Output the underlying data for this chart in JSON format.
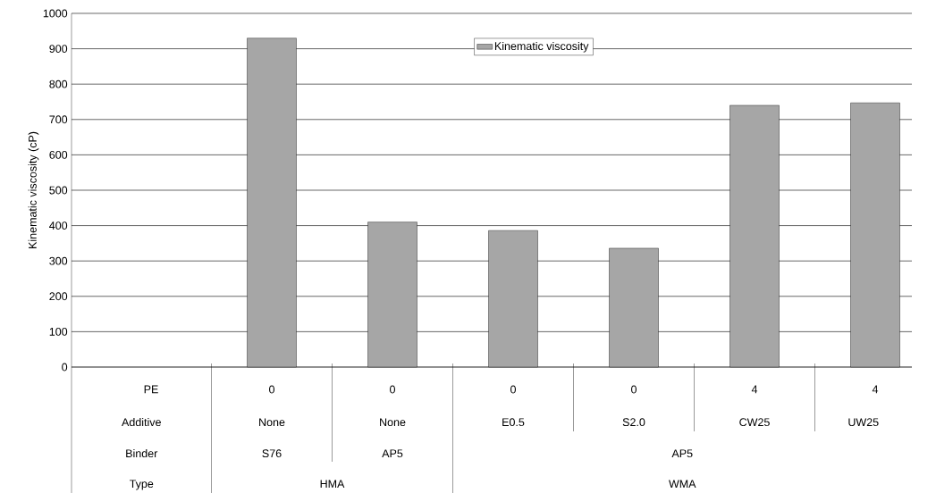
{
  "chart_data": {
    "type": "bar",
    "ylabel": "Kinematic viscosity (cP)",
    "categories": [
      "PE",
      "0",
      "0",
      "0",
      "0",
      "4",
      "4"
    ],
    "series": [
      {
        "name": "Kinematic viscosity",
        "color": "#a6a6a6",
        "values": [
          null,
          930,
          410,
          386,
          336,
          740,
          747
        ]
      }
    ],
    "ylim": [
      0,
      1000
    ],
    "yticks": [
      0,
      100,
      200,
      300,
      400,
      500,
      600,
      700,
      800,
      900,
      1000
    ],
    "grid": "y",
    "legend": "top",
    "annotations": [
      "Additive",
      "None",
      "None",
      "E0.5",
      "S2.0",
      "CW25",
      "UW25",
      "Binder",
      "S76",
      "AP5",
      "AP5",
      "Type",
      "HMA",
      "WMA"
    ]
  }
}
